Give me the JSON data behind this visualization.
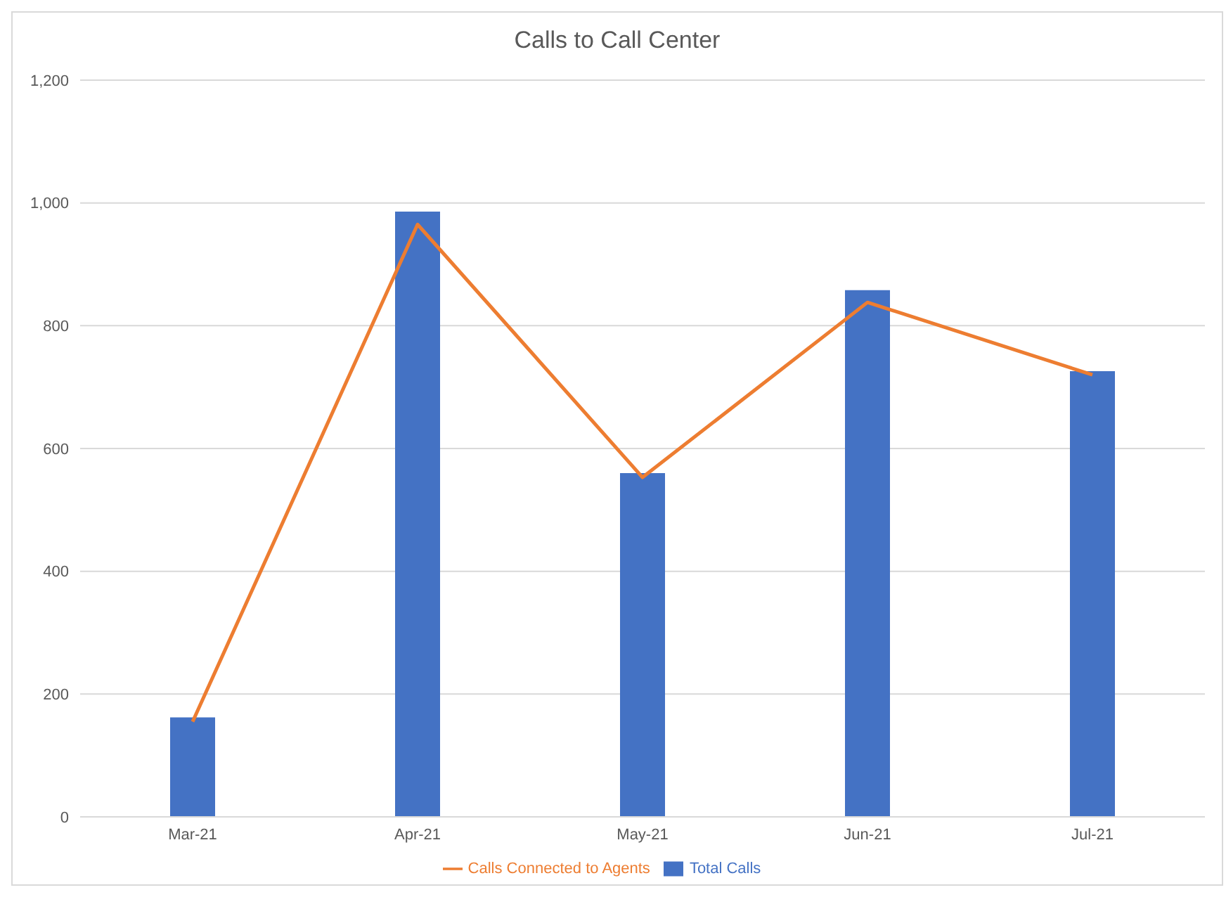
{
  "chart_data": {
    "type": "bar",
    "title": "Calls to Call Center",
    "categories": [
      "Mar-21",
      "Apr-21",
      "May-21",
      "Jun-21",
      "Jul-21"
    ],
    "series": [
      {
        "name": "Total Calls",
        "color": "#4472c4",
        "values": [
          162,
          986,
          560,
          858,
          726
        ]
      },
      {
        "name": "Calls Connected to Agents",
        "type": "line",
        "color": "#ed7d31",
        "values": [
          155,
          965,
          553,
          838,
          720
        ]
      }
    ],
    "ylim": [
      0,
      1200
    ],
    "yticks": [
      0,
      200,
      400,
      600,
      800,
      {
        "value": 1000,
        "label": "1,000"
      },
      {
        "value": 1200,
        "label": "1,200"
      }
    ],
    "grid": "y",
    "legend": "bottom",
    "marker": "none",
    "line_style": "solid"
  }
}
